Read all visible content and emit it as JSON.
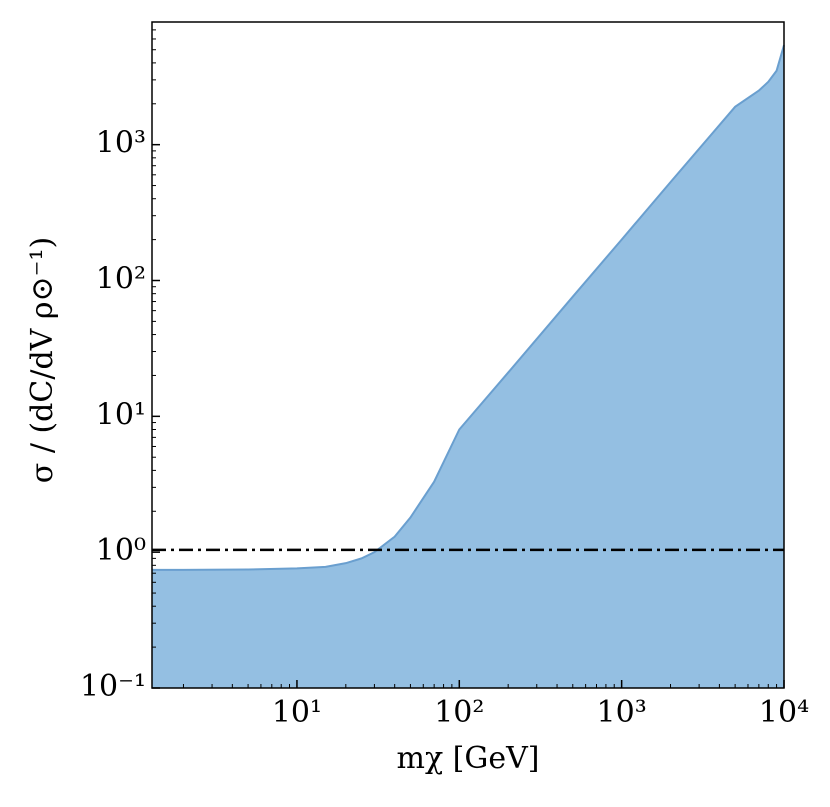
{
  "chart_data": {
    "type": "area",
    "xlabel": "mχ [GeV]",
    "ylabel": "σ / (dC/dV ρ⊙⁻¹)",
    "x": [
      1.28,
      2,
      5,
      10,
      15,
      20,
      25,
      30,
      40,
      50,
      70,
      100,
      200,
      500,
      1000,
      2000,
      5000,
      7000,
      8000,
      9000,
      10000
    ],
    "series": [
      {
        "name": "σ",
        "color": "#94bfe2",
        "edgecolor": "#6a9fcf",
        "values": [
          0.74,
          0.74,
          0.745,
          0.76,
          0.78,
          0.83,
          0.9,
          1.0,
          1.3,
          1.8,
          3.3,
          8,
          21,
          76,
          200,
          530,
          1900,
          2500,
          2900,
          3500,
          5400
        ]
      }
    ],
    "hline": {
      "value": 1.04,
      "color": "#000000",
      "style": "dashdot"
    },
    "xscale": "log",
    "yscale": "log",
    "xlim": [
      1.28,
      10000
    ],
    "ylim": [
      0.1,
      8000
    ],
    "xticks": [
      {
        "value": 10,
        "label": "10¹"
      },
      {
        "value": 100,
        "label": "10²"
      },
      {
        "value": 1000,
        "label": "10³"
      },
      {
        "value": 10000,
        "label": "10⁴"
      }
    ],
    "yticks": [
      {
        "value": 0.1,
        "label": "10⁻¹"
      },
      {
        "value": 1,
        "label": "10⁰"
      },
      {
        "value": 10,
        "label": "10¹"
      },
      {
        "value": 100,
        "label": "10²"
      },
      {
        "value": 1000,
        "label": "10³"
      }
    ]
  }
}
